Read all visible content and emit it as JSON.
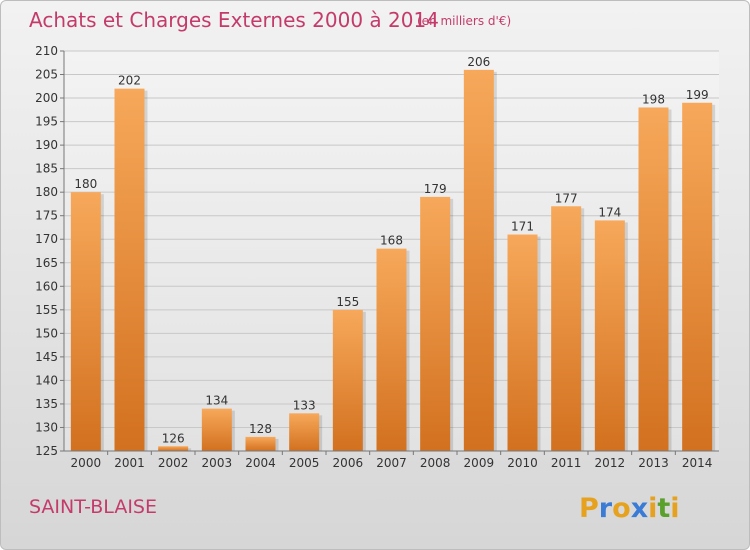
{
  "chart_data": {
    "type": "bar",
    "title": "Achats et Charges Externes 2000 à 2014",
    "subtitle": "(en milliers d'€)",
    "categories": [
      "2000",
      "2001",
      "2002",
      "2003",
      "2004",
      "2005",
      "2006",
      "2007",
      "2008",
      "2009",
      "2010",
      "2011",
      "2012",
      "2013",
      "2014"
    ],
    "values": [
      180,
      202,
      126,
      134,
      128,
      133,
      155,
      168,
      179,
      206,
      171,
      177,
      174,
      198,
      199
    ],
    "ylim": [
      125,
      210
    ],
    "yticks": [
      125,
      130,
      135,
      140,
      145,
      150,
      155,
      160,
      165,
      170,
      175,
      180,
      185,
      190,
      195,
      200,
      205,
      210
    ],
    "grid": true,
    "bar_color": "#f0923a"
  },
  "place_label": "SAINT-BLAISE",
  "logo": {
    "text": "Proxiti",
    "letter_colors": [
      "#e6a21e",
      "#3a7bd5",
      "#e6a21e",
      "#3a7bd5",
      "#e6a21e",
      "#5aa02c",
      "#e6a21e"
    ]
  }
}
